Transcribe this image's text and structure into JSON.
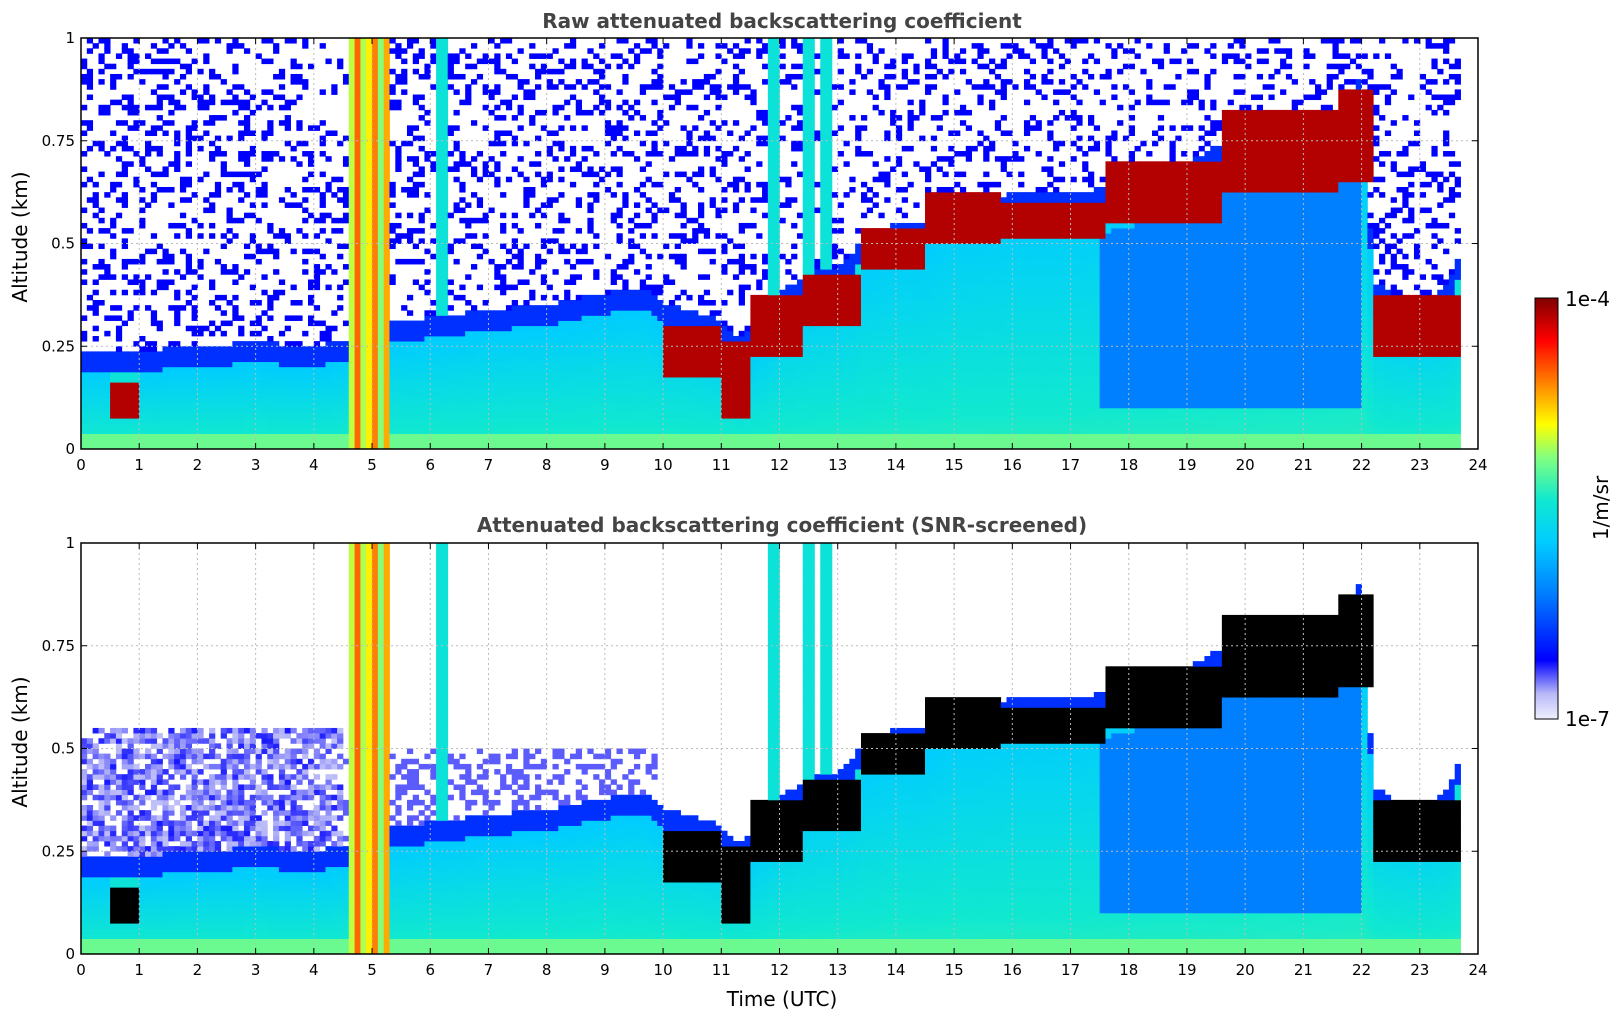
{
  "chart_data": [
    {
      "type": "heatmap",
      "title": "Raw attenuated backscattering coefficient",
      "xlabel": "",
      "ylabel": "Altitude (km)",
      "xlim": [
        0,
        24
      ],
      "ylim": [
        0,
        1
      ],
      "x_ticks": [
        "0",
        "1",
        "2",
        "3",
        "4",
        "5",
        "6",
        "7",
        "8",
        "9",
        "10",
        "11",
        "12",
        "13",
        "14",
        "15",
        "16",
        "17",
        "18",
        "19",
        "20",
        "21",
        "22",
        "23",
        "24"
      ],
      "y_ticks": [
        "0",
        "0.25",
        "0.5",
        "0.75",
        "1"
      ],
      "grid": true,
      "screened": false,
      "layer_top_km": [
        [
          0,
          0.19
        ],
        [
          1,
          0.19
        ],
        [
          2,
          0.2
        ],
        [
          3,
          0.21
        ],
        [
          4,
          0.2
        ],
        [
          4.6,
          0.22
        ],
        [
          5.2,
          0.26
        ],
        [
          6,
          0.27
        ],
        [
          7,
          0.29
        ],
        [
          8,
          0.3
        ],
        [
          9,
          0.33
        ],
        [
          9.7,
          0.34
        ],
        [
          10,
          0.3
        ],
        [
          10.5,
          0.29
        ],
        [
          11,
          0.26
        ],
        [
          11.3,
          0.22
        ],
        [
          11.8,
          0.28
        ],
        [
          12,
          0.33
        ],
        [
          12.5,
          0.38
        ],
        [
          13,
          0.39
        ],
        [
          13.5,
          0.47
        ],
        [
          14,
          0.5
        ],
        [
          14.5,
          0.5
        ],
        [
          15,
          0.55
        ],
        [
          16,
          0.57
        ],
        [
          17,
          0.57
        ],
        [
          18,
          0.6
        ],
        [
          19,
          0.65
        ],
        [
          20,
          0.72
        ],
        [
          20.5,
          0.76
        ],
        [
          21,
          0.7
        ],
        [
          21.5,
          0.76
        ],
        [
          22,
          0.86
        ],
        [
          22.2,
          0.36
        ],
        [
          22.5,
          0.33
        ],
        [
          23,
          0.31
        ],
        [
          23.5,
          0.35
        ],
        [
          23.7,
          0.44
        ]
      ],
      "dense_layer_km": [
        [
          0.5,
          1.0,
          0.08,
          0.16
        ],
        [
          10.0,
          11.0,
          0.18,
          0.3
        ],
        [
          11.0,
          11.5,
          0.07,
          0.26
        ],
        [
          11.5,
          12.4,
          0.22,
          0.38
        ],
        [
          12.4,
          13.4,
          0.3,
          0.42
        ],
        [
          13.4,
          14.5,
          0.44,
          0.54
        ],
        [
          14.5,
          15.8,
          0.5,
          0.62
        ],
        [
          15.8,
          17.6,
          0.51,
          0.6
        ],
        [
          17.6,
          19.6,
          0.55,
          0.7
        ],
        [
          19.6,
          21.6,
          0.62,
          0.82
        ],
        [
          21.6,
          22.2,
          0.65,
          0.88
        ],
        [
          22.2,
          23.7,
          0.22,
          0.38
        ]
      ],
      "aerosol_plumes_utc": [
        4.7,
        6.2,
        11.9,
        12.5,
        12.8
      ]
    },
    {
      "type": "heatmap",
      "title": "Attenuated backscattering coefficient (SNR-screened)",
      "xlabel": "Time (UTC)",
      "ylabel": "Altitude (km)",
      "xlim": [
        0,
        24
      ],
      "ylim": [
        0,
        1
      ],
      "x_ticks": [
        "0",
        "1",
        "2",
        "3",
        "4",
        "5",
        "6",
        "7",
        "8",
        "9",
        "10",
        "11",
        "12",
        "13",
        "14",
        "15",
        "16",
        "17",
        "18",
        "19",
        "20",
        "21",
        "22",
        "23",
        "24"
      ],
      "y_ticks": [
        "0",
        "0.25",
        "0.5",
        "0.75",
        "1"
      ],
      "grid": true,
      "screened": true,
      "saturated_color": "#000000"
    }
  ],
  "colorbar": {
    "label": "1/m/sr",
    "max_label": "1e-4",
    "min_label": "1e-7",
    "scale": "log",
    "range": [
      1e-07,
      0.0001
    ],
    "colormap": "jet"
  }
}
